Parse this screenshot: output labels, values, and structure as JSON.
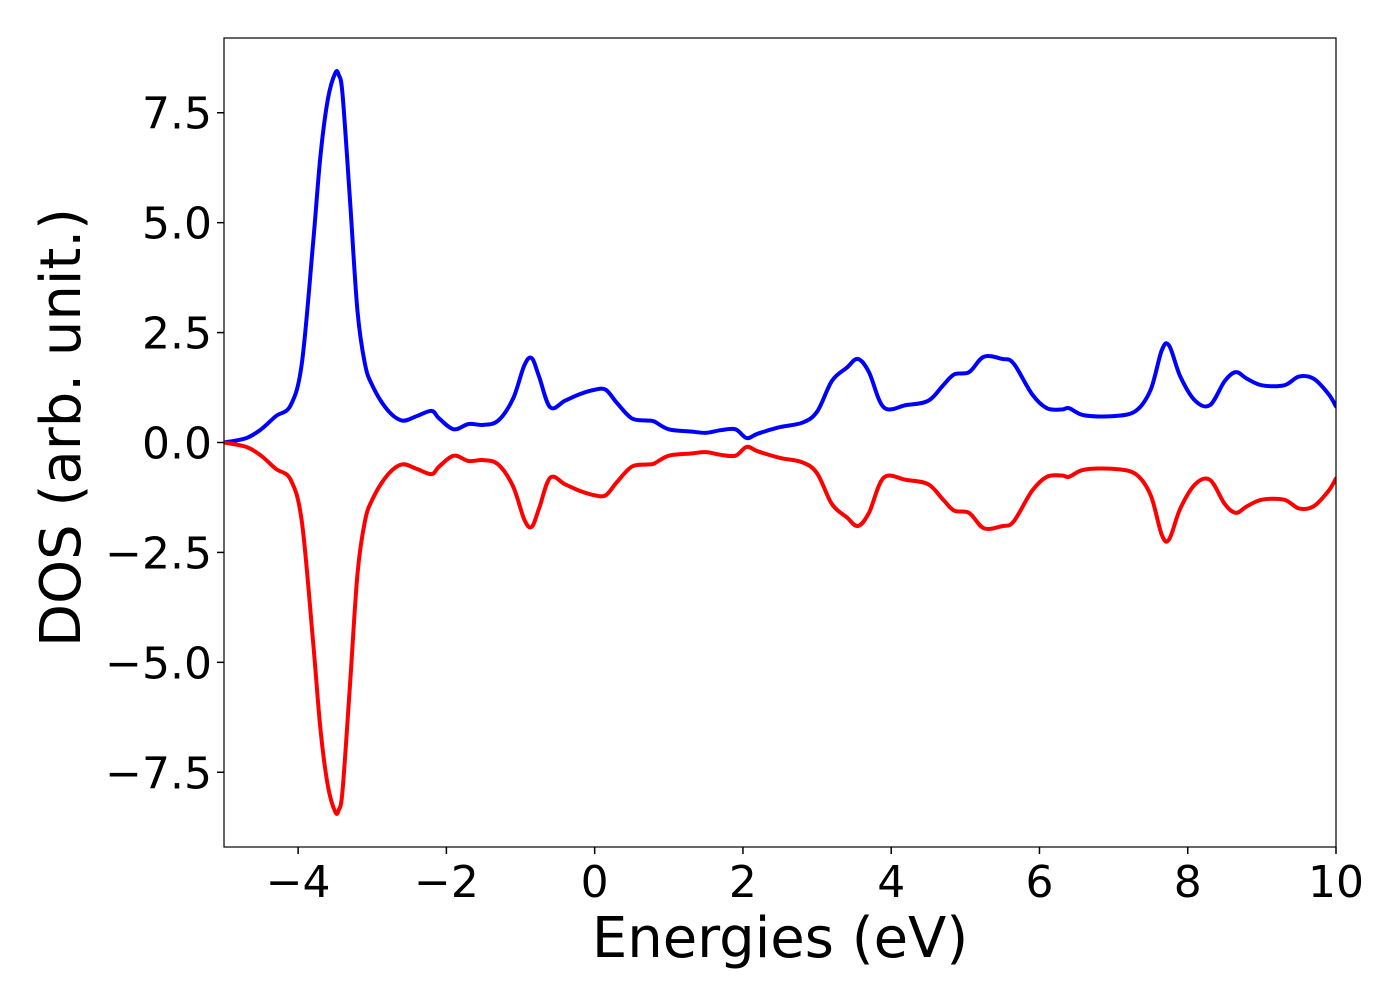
{
  "chart_data": {
    "type": "line",
    "title": "",
    "xlabel": "Energies (eV)",
    "ylabel": "DOS (arb. unit.)",
    "xlim": [
      -5,
      10
    ],
    "ylim": [
      -9.2,
      9.2
    ],
    "xticks": [
      -4,
      -2,
      0,
      2,
      4,
      6,
      8,
      10
    ],
    "xtick_labels": [
      "−4",
      "−2",
      "0",
      "2",
      "4",
      "6",
      "8",
      "10"
    ],
    "yticks": [
      7.5,
      5.0,
      2.5,
      0.0,
      -2.5,
      -5.0,
      -7.5
    ],
    "ytick_labels": [
      "7.5",
      "5.0",
      "2.5",
      "0.0",
      "−2.5",
      "−5.0",
      "−7.5"
    ],
    "grid": false,
    "legend": "none",
    "series": [
      {
        "color": "#0000ff",
        "x": [
          -5.0,
          -4.7,
          -4.5,
          -4.3,
          -4.1,
          -3.95,
          -3.8,
          -3.7,
          -3.6,
          -3.5,
          -3.45,
          -3.4,
          -3.3,
          -3.2,
          -3.1,
          -3.0,
          -2.8,
          -2.6,
          -2.4,
          -2.2,
          -2.1,
          -1.9,
          -1.7,
          -1.5,
          -1.3,
          -1.1,
          -0.95,
          -0.85,
          -0.75,
          -0.6,
          -0.4,
          -0.2,
          0.0,
          0.15,
          0.3,
          0.5,
          0.7,
          0.8,
          1.0,
          1.3,
          1.5,
          1.7,
          1.9,
          2.05,
          2.2,
          2.5,
          2.8,
          3.0,
          3.2,
          3.4,
          3.55,
          3.7,
          3.9,
          4.2,
          4.5,
          4.7,
          4.85,
          5.05,
          5.25,
          5.5,
          5.65,
          5.9,
          6.1,
          6.3,
          6.4,
          6.6,
          7.0,
          7.3,
          7.5,
          7.65,
          7.75,
          7.9,
          8.1,
          8.3,
          8.5,
          8.65,
          8.8,
          9.0,
          9.3,
          9.5,
          9.7,
          9.9,
          10.0
        ],
        "y": [
          0.0,
          0.1,
          0.3,
          0.6,
          0.85,
          1.8,
          4.5,
          6.5,
          7.8,
          8.4,
          8.35,
          7.9,
          5.5,
          3.0,
          1.8,
          1.3,
          0.75,
          0.5,
          0.6,
          0.72,
          0.55,
          0.3,
          0.42,
          0.4,
          0.5,
          1.0,
          1.75,
          1.92,
          1.5,
          0.8,
          0.95,
          1.1,
          1.2,
          1.2,
          0.9,
          0.55,
          0.5,
          0.48,
          0.3,
          0.25,
          0.22,
          0.28,
          0.3,
          0.1,
          0.2,
          0.35,
          0.45,
          0.7,
          1.4,
          1.7,
          1.9,
          1.6,
          0.8,
          0.85,
          0.95,
          1.3,
          1.55,
          1.6,
          1.95,
          1.9,
          1.8,
          1.1,
          0.78,
          0.75,
          0.78,
          0.62,
          0.6,
          0.72,
          1.2,
          2.1,
          2.2,
          1.5,
          0.95,
          0.85,
          1.4,
          1.6,
          1.45,
          1.3,
          1.3,
          1.5,
          1.45,
          1.1,
          0.82
        ]
      },
      {
        "color": "#ff0000",
        "x": [
          -5.0,
          -4.7,
          -4.5,
          -4.3,
          -4.1,
          -3.95,
          -3.8,
          -3.7,
          -3.6,
          -3.5,
          -3.45,
          -3.4,
          -3.3,
          -3.2,
          -3.1,
          -3.0,
          -2.8,
          -2.6,
          -2.4,
          -2.2,
          -2.1,
          -1.9,
          -1.7,
          -1.5,
          -1.3,
          -1.1,
          -0.95,
          -0.85,
          -0.75,
          -0.6,
          -0.4,
          -0.2,
          0.0,
          0.15,
          0.3,
          0.5,
          0.7,
          0.8,
          1.0,
          1.3,
          1.5,
          1.7,
          1.9,
          2.05,
          2.2,
          2.5,
          2.8,
          3.0,
          3.2,
          3.4,
          3.55,
          3.7,
          3.9,
          4.2,
          4.5,
          4.7,
          4.85,
          5.05,
          5.25,
          5.5,
          5.65,
          5.9,
          6.1,
          6.3,
          6.4,
          6.6,
          7.0,
          7.3,
          7.5,
          7.65,
          7.75,
          7.9,
          8.1,
          8.3,
          8.5,
          8.65,
          8.8,
          9.0,
          9.3,
          9.5,
          9.7,
          9.9,
          10.0
        ],
        "y": [
          0.0,
          -0.1,
          -0.3,
          -0.6,
          -0.85,
          -1.8,
          -4.5,
          -6.5,
          -7.8,
          -8.4,
          -8.35,
          -7.9,
          -5.5,
          -3.0,
          -1.8,
          -1.3,
          -0.75,
          -0.5,
          -0.6,
          -0.72,
          -0.55,
          -0.3,
          -0.42,
          -0.4,
          -0.5,
          -1.0,
          -1.75,
          -1.92,
          -1.5,
          -0.8,
          -0.95,
          -1.1,
          -1.2,
          -1.2,
          -0.9,
          -0.55,
          -0.5,
          -0.48,
          -0.3,
          -0.25,
          -0.22,
          -0.28,
          -0.3,
          -0.1,
          -0.2,
          -0.35,
          -0.45,
          -0.7,
          -1.4,
          -1.7,
          -1.9,
          -1.6,
          -0.8,
          -0.85,
          -0.95,
          -1.3,
          -1.55,
          -1.6,
          -1.95,
          -1.9,
          -1.8,
          -1.1,
          -0.78,
          -0.75,
          -0.78,
          -0.62,
          -0.6,
          -0.72,
          -1.2,
          -2.1,
          -2.2,
          -1.5,
          -0.95,
          -0.85,
          -1.4,
          -1.6,
          -1.45,
          -1.3,
          -1.3,
          -1.5,
          -1.45,
          -1.1,
          -0.82
        ]
      }
    ]
  }
}
